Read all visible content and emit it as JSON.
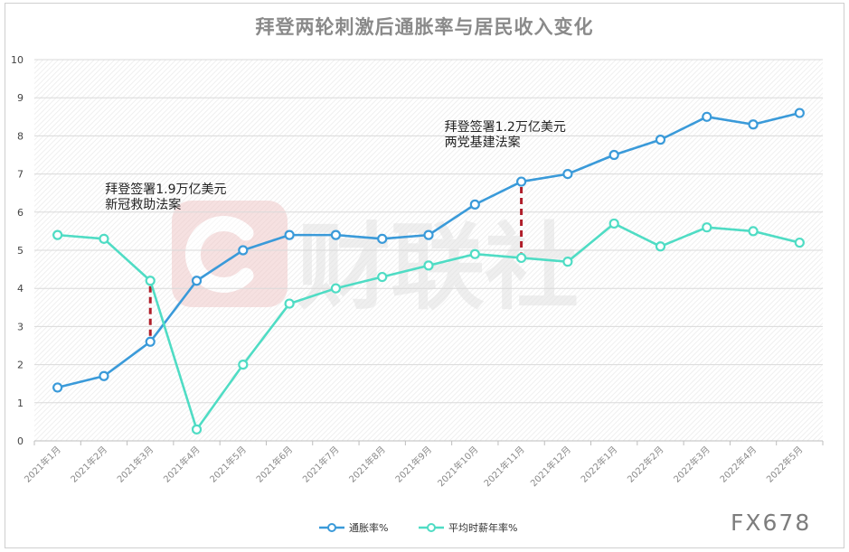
{
  "chart_data": {
    "type": "line",
    "title": "拜登两轮刺激后通胀率与居民收入变化",
    "categories": [
      "2021年1月",
      "2021年2月",
      "2021年3月",
      "2021年4月",
      "2021年5月",
      "2021年6月",
      "2021年7月",
      "2021年8月",
      "2021年9月",
      "2021年10月",
      "2021年11月",
      "2021年12月",
      "2022年1月",
      "2022年2月",
      "2022年3月",
      "2022年4月",
      "2022年5月"
    ],
    "yticks": [
      "0",
      "1",
      "2",
      "3",
      "4",
      "5",
      "6",
      "7",
      "8",
      "9",
      "10"
    ],
    "ylim": [
      0,
      10
    ],
    "grid": true,
    "legend_position": "bottom",
    "series": [
      {
        "name": "通胀率%",
        "color": "#3a9ad9",
        "values": [
          1.4,
          1.7,
          2.6,
          4.2,
          5.0,
          5.4,
          5.4,
          5.3,
          5.4,
          6.2,
          6.8,
          7.0,
          7.5,
          7.9,
          8.5,
          8.3,
          8.6
        ]
      },
      {
        "name": "平均时薪年率%",
        "color": "#4fdcc4",
        "values": [
          5.4,
          5.3,
          4.2,
          0.3,
          2.0,
          3.6,
          4.0,
          4.3,
          4.6,
          4.9,
          4.8,
          4.7,
          5.7,
          5.1,
          5.6,
          5.5,
          5.2
        ]
      }
    ],
    "annotations": [
      {
        "lines": [
          "拜登签署1.9万亿美元",
          "新冠救助法案"
        ],
        "category_index": 2
      },
      {
        "lines": [
          "拜登签署1.2万亿美元",
          "两党基建法案"
        ],
        "category_index": 10
      }
    ]
  },
  "watermark": {
    "center_text": "财联社",
    "corner_text": "FX678"
  }
}
